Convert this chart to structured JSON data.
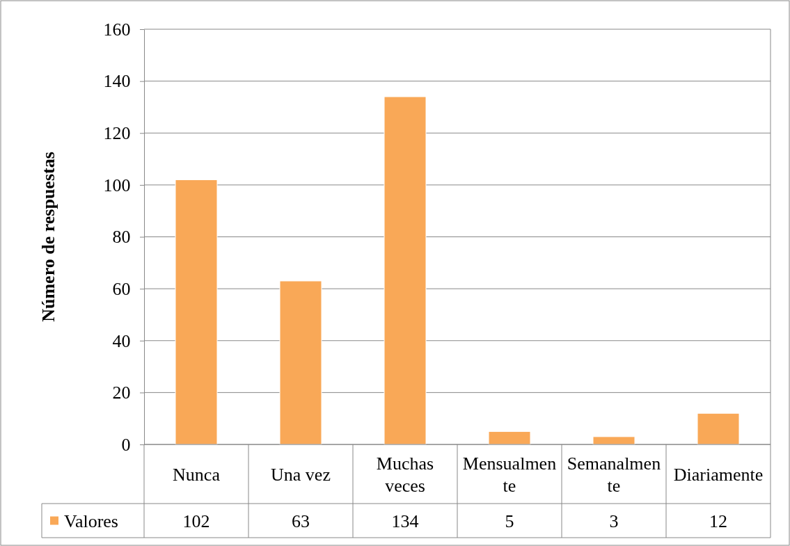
{
  "chart_data": {
    "type": "bar",
    "ylabel": "Número de respuestas",
    "categories": [
      "Nunca",
      "Una vez",
      "Muchas veces",
      "Mensualmente",
      "Semanalmente",
      "Diariamente"
    ],
    "series": [
      {
        "name": "Valores",
        "color": "#f9a857",
        "values": [
          102,
          63,
          134,
          5,
          3,
          12
        ]
      }
    ],
    "ylim": [
      0,
      160
    ],
    "yticks": [
      0,
      20,
      40,
      60,
      80,
      100,
      120,
      140,
      160
    ],
    "grid": "y",
    "legend": "bottom",
    "data_labels": true
  }
}
